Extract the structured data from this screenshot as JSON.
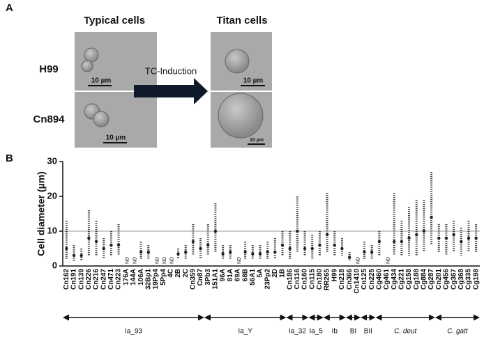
{
  "panel_labels": [
    "A",
    "B"
  ],
  "panel_a": {
    "col_titles": [
      "Typical cells",
      "Titan cells"
    ],
    "row_labels": [
      "H99",
      "Cn894"
    ],
    "arrow_label": "TC-Induction",
    "scale_bar": "10 µm"
  },
  "chart_data": {
    "type": "strip",
    "y_label": "Cell diameter (µm)",
    "ylim": [
      0,
      30
    ],
    "yticks": [
      0,
      10,
      20,
      30
    ],
    "ref_line": 10,
    "color": "#222222",
    "categories": [
      "Cn162",
      "Cn191",
      "Cn139",
      "Cn226",
      "Cn216",
      "Cn247",
      "Cn471",
      "Cn223",
      "176A",
      "144A",
      "106A",
      "32Bp1",
      "19Pp4",
      "5Pp4",
      "4C",
      "2B",
      "2C",
      "Cn359",
      "Cn87",
      "3Pb3",
      "151A1",
      "96A",
      "81A",
      "69A",
      "68B",
      "56A1",
      "5A",
      "23Pp2",
      "2D",
      "1B",
      "Cn186",
      "Cn116",
      "Cn160",
      "Cn115",
      "Cn180",
      "RR265",
      "H99",
      "Cn218",
      "Cn366",
      "Cn1410",
      "Cn125",
      "Cn225",
      "Cg460",
      "Cg461",
      "Cg434",
      "Cg221",
      "Cg158",
      "Cg188",
      "Cg884",
      "Cg287",
      "Cn201",
      "Cg456",
      "Cg367",
      "Cg368",
      "Cg335",
      "Cg198"
    ],
    "min": [
      2,
      1.5,
      1.5,
      3,
      3,
      2,
      3,
      3,
      null,
      null,
      2,
      2,
      null,
      null,
      null,
      2,
      2,
      3,
      2,
      3,
      4,
      2,
      2,
      null,
      2,
      2,
      2,
      2,
      2,
      3,
      2,
      4,
      3,
      2,
      3,
      4,
      3,
      3,
      1.5,
      null,
      2,
      2,
      3,
      null,
      3,
      3,
      3,
      3,
      4,
      6,
      4,
      3,
      4,
      3,
      4,
      4
    ],
    "values": [
      5,
      3,
      3,
      8,
      7,
      5,
      6,
      6,
      null,
      null,
      4,
      4,
      null,
      null,
      null,
      3.5,
      4,
      7,
      5,
      6,
      10,
      3.5,
      4,
      null,
      4,
      3.5,
      3.5,
      4,
      4,
      6,
      5,
      10,
      5,
      5,
      6,
      9,
      6,
      5,
      2.5,
      null,
      4,
      4,
      7,
      null,
      7,
      7,
      8,
      9,
      10,
      14,
      8,
      8,
      9,
      7,
      8,
      8
    ],
    "max": [
      13,
      6,
      5,
      16,
      13,
      8,
      10,
      12,
      null,
      null,
      7,
      6,
      null,
      null,
      null,
      5,
      6,
      12,
      8,
      12,
      18,
      6,
      6,
      null,
      7,
      6,
      6,
      7,
      8,
      10,
      10,
      20,
      10,
      9,
      10,
      21,
      10,
      8,
      4,
      null,
      7,
      6,
      10,
      null,
      21,
      13,
      17,
      19,
      19,
      27,
      12,
      12,
      13,
      11,
      13,
      12
    ],
    "value_labels": [
      null,
      null,
      null,
      null,
      null,
      null,
      null,
      null,
      "ND",
      "ND",
      null,
      null,
      "ND",
      "ND",
      "ND",
      null,
      null,
      null,
      null,
      null,
      null,
      null,
      null,
      "ND",
      null,
      null,
      null,
      null,
      null,
      null,
      null,
      null,
      null,
      null,
      null,
      null,
      null,
      null,
      null,
      "ND",
      null,
      null,
      null,
      "ND",
      null,
      null,
      null,
      null,
      null,
      null,
      null,
      null,
      null,
      null,
      null,
      null
    ],
    "groups": [
      {
        "label": "Ia_93",
        "start": 0,
        "end": 18
      },
      {
        "label": "Ia_Y",
        "start": 19,
        "end": 29
      },
      {
        "label": "Ia_32",
        "start": 30,
        "end": 32
      },
      {
        "label": "Ia_5",
        "start": 33,
        "end": 34
      },
      {
        "label": "Ib",
        "start": 35,
        "end": 37
      },
      {
        "label": "BI",
        "start": 38,
        "end": 39
      },
      {
        "label": "BII",
        "start": 40,
        "end": 41
      },
      {
        "label": "C. deut",
        "start": 42,
        "end": 49
      },
      {
        "label": "C. gatt",
        "start": 50,
        "end": 55
      }
    ]
  }
}
